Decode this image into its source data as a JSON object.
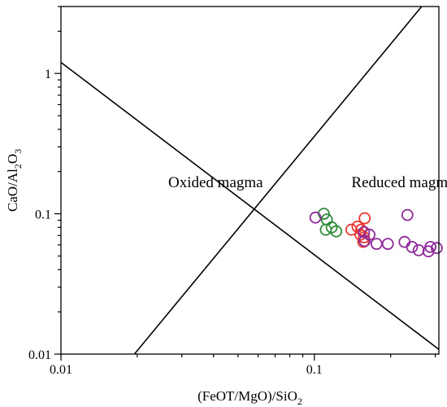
{
  "chart_data": {
    "type": "scatter",
    "xlabel_parts": [
      "(FeOT/MgO)/SiO",
      "2"
    ],
    "ylabel_parts": [
      "CaO/Al",
      "2",
      "O",
      "3"
    ],
    "xscale": "log",
    "yscale": "log",
    "xlim": [
      0.01,
      0.31
    ],
    "ylim": [
      0.01,
      3.0
    ],
    "x_ticks": [
      {
        "value": 0.01,
        "label": "0.01"
      },
      {
        "value": 0.1,
        "label": "0.1"
      }
    ],
    "y_ticks": [
      {
        "value": 0.01,
        "label": "0.01"
      },
      {
        "value": 0.1,
        "label": "0.1"
      },
      {
        "value": 1,
        "label": "1"
      }
    ],
    "grid": false,
    "annotations": [
      {
        "text": "Oxided magma",
        "x": 0.0265,
        "y": 0.155
      },
      {
        "text": "Reduced magma",
        "x": 0.14,
        "y": 0.155
      }
    ],
    "reference_lines": [
      {
        "points": [
          [
            0.01,
            1.2
          ],
          [
            0.31,
            0.0108
          ]
        ]
      },
      {
        "points": [
          [
            0.0195,
            0.01
          ],
          [
            0.265,
            3.0
          ]
        ]
      }
    ],
    "series": [
      {
        "color": "#2e8b3a",
        "points": [
          {
            "x": 0.109,
            "y": 0.1
          },
          {
            "x": 0.112,
            "y": 0.091
          },
          {
            "x": 0.111,
            "y": 0.077
          },
          {
            "x": 0.117,
            "y": 0.08
          },
          {
            "x": 0.122,
            "y": 0.075
          }
        ]
      },
      {
        "color": "#e8382e",
        "points": [
          {
            "x": 0.14,
            "y": 0.077
          },
          {
            "x": 0.148,
            "y": 0.081
          },
          {
            "x": 0.153,
            "y": 0.077
          },
          {
            "x": 0.158,
            "y": 0.093
          },
          {
            "x": 0.152,
            "y": 0.071
          },
          {
            "x": 0.157,
            "y": 0.068
          },
          {
            "x": 0.156,
            "y": 0.063
          }
        ]
      },
      {
        "color": "#8e2a9a",
        "points": [
          {
            "x": 0.101,
            "y": 0.094
          },
          {
            "x": 0.157,
            "y": 0.074
          },
          {
            "x": 0.165,
            "y": 0.071
          },
          {
            "x": 0.158,
            "y": 0.064
          },
          {
            "x": 0.176,
            "y": 0.061
          },
          {
            "x": 0.195,
            "y": 0.061
          },
          {
            "x": 0.233,
            "y": 0.098
          },
          {
            "x": 0.227,
            "y": 0.063
          },
          {
            "x": 0.243,
            "y": 0.058
          },
          {
            "x": 0.258,
            "y": 0.055
          },
          {
            "x": 0.282,
            "y": 0.054
          },
          {
            "x": 0.287,
            "y": 0.058
          },
          {
            "x": 0.304,
            "y": 0.057
          }
        ]
      }
    ]
  }
}
